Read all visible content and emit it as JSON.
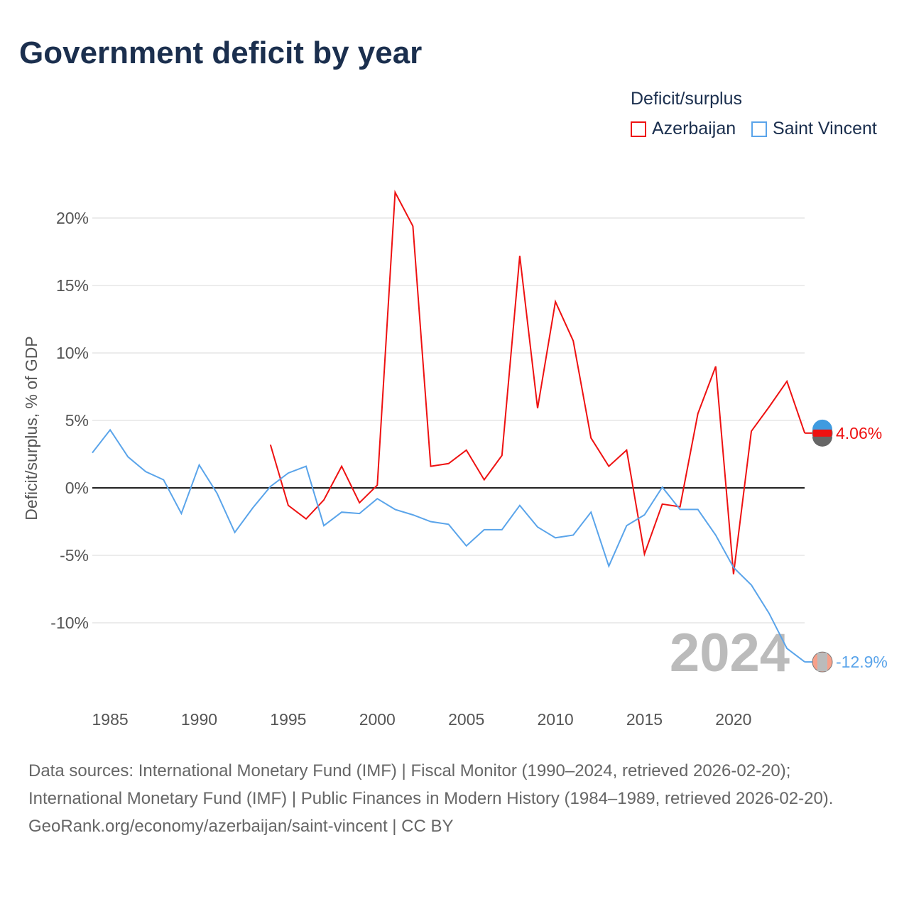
{
  "title": "Government deficit by year",
  "legend": {
    "title": "Deficit/surplus",
    "items": [
      {
        "name": "Azerbaijan",
        "color": "#ee1111"
      },
      {
        "name": "Saint Vincent",
        "color": "#5aa4ea"
      }
    ]
  },
  "source": {
    "line1": "Data sources: International Monetary Fund (IMF) | Fiscal Monitor (1990–2024, retrieved 2026-02-20); International Monetary Fund (IMF) | Public Finances in Modern History (1984–1989, retrieved 2026-02-20).",
    "line2": "GeoRank.org/economy/azerbaijan/saint-vincent | CC BY"
  },
  "chart_data": {
    "type": "line",
    "title": "Government deficit by year",
    "ylabel": "Deficit/surplus, % of GDP",
    "xlabel": "",
    "year_label": "2024",
    "xlim": [
      1984,
      2024
    ],
    "ylim": [
      -13.5,
      22.5
    ],
    "xticks": [
      1985,
      1990,
      1995,
      2000,
      2005,
      2010,
      2015,
      2020
    ],
    "yticks": [
      {
        "v": 20,
        "label": "20%"
      },
      {
        "v": 15,
        "label": "15%"
      },
      {
        "v": 10,
        "label": "10%"
      },
      {
        "v": 5,
        "label": "5%"
      },
      {
        "v": 0,
        "label": "0%"
      },
      {
        "v": -5,
        "label": "-5%"
      },
      {
        "v": -10,
        "label": "-10%"
      }
    ],
    "series": [
      {
        "name": "Azerbaijan",
        "color": "#ee1111",
        "end_label": "4.06%",
        "start": 1994,
        "values": [
          3.2,
          -1.3,
          -2.3,
          -0.9,
          1.6,
          -1.1,
          0.2,
          21.9,
          19.4,
          1.6,
          1.8,
          2.8,
          0.6,
          2.4,
          17.2,
          5.9,
          13.8,
          10.9,
          3.7,
          1.6,
          2.8,
          -4.9,
          -1.2,
          -1.4,
          5.5,
          9.0,
          -6.4,
          4.2,
          6.0,
          7.9,
          4.06
        ]
      },
      {
        "name": "Saint Vincent",
        "color": "#5aa4ea",
        "end_label": "-12.9%",
        "start": 1984,
        "values": [
          2.6,
          4.3,
          2.3,
          1.2,
          0.6,
          -1.9,
          1.7,
          -0.4,
          -3.3,
          -1.5,
          0.1,
          1.1,
          1.6,
          -2.8,
          -1.8,
          -1.9,
          -0.8,
          -1.6,
          -2.0,
          -2.5,
          -2.7,
          -4.3,
          -3.1,
          -3.1,
          -1.3,
          -2.9,
          -3.7,
          -3.5,
          -1.8,
          -5.8,
          -2.8,
          -2.0,
          0.05,
          -1.6,
          -1.6,
          -3.5,
          -5.9,
          -7.2,
          -9.3,
          -11.9,
          -12.9
        ]
      }
    ]
  }
}
